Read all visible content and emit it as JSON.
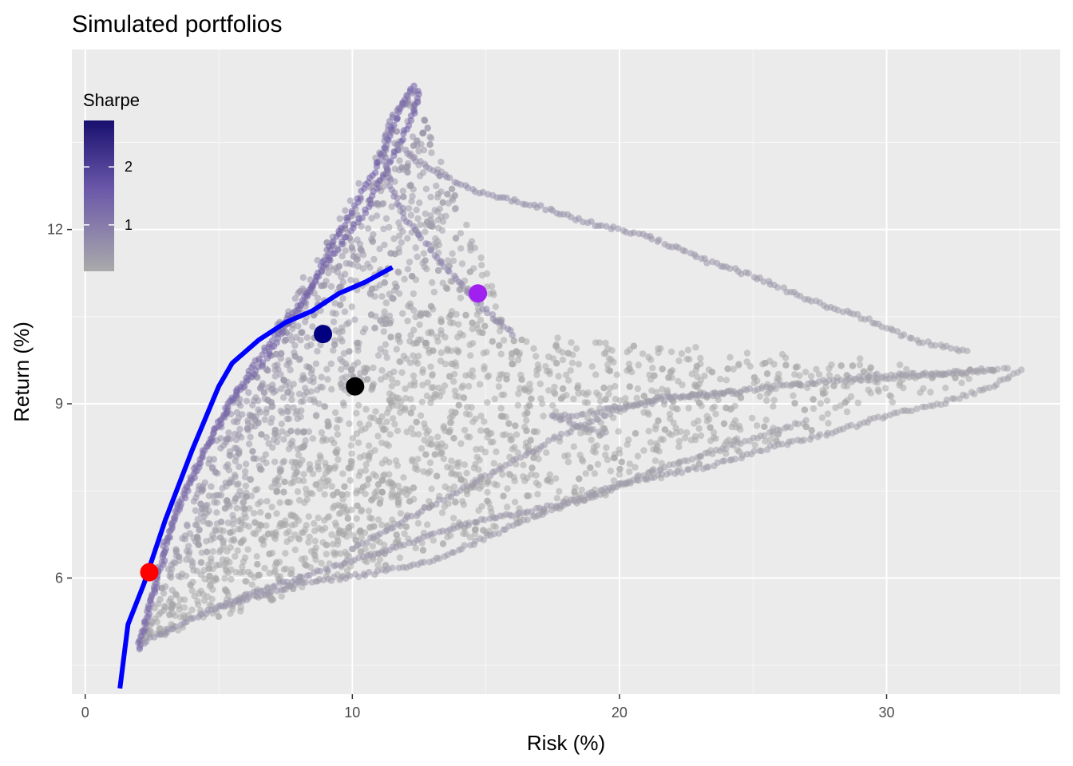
{
  "chart_data": {
    "type": "scatter",
    "title": "Simulated portfolios",
    "xlabel": "Risk (%)",
    "ylabel": "Return (%)",
    "xlim": [
      -0.5,
      36.5
    ],
    "ylim": [
      4.0,
      15.1
    ],
    "x_ticks": [
      0,
      10,
      20,
      30
    ],
    "x_tick_labels": [
      "0",
      "10",
      "20",
      "30"
    ],
    "y_ticks": [
      6,
      9,
      12
    ],
    "y_tick_labels": [
      "6",
      "9",
      "12"
    ],
    "grid": true,
    "background": "#ebebeb",
    "legend": {
      "title": "Sharpe",
      "position": "top-left-inside",
      "type": "colorbar",
      "range": [
        0.2,
        2.8
      ],
      "breaks": [
        1,
        2
      ],
      "break_labels": [
        "1",
        "2"
      ],
      "low_color": "#aaaaaa",
      "high_color": "#18106e"
    },
    "point_style": {
      "opacity": 0.55,
      "color_low": "#aaaaaa",
      "color_high": "#6a56a8"
    },
    "edges": [
      {
        "name": "edge-a",
        "points": [
          [
            2.0,
            4.8
          ],
          [
            2.3,
            5.3
          ],
          [
            3.0,
            6.6
          ],
          [
            4.0,
            7.7
          ],
          [
            5.5,
            9.1
          ],
          [
            6.5,
            9.6
          ],
          [
            7.5,
            10.3
          ],
          [
            8.5,
            11.0
          ],
          [
            9.3,
            11.8
          ],
          [
            10.0,
            12.3
          ],
          [
            10.8,
            13.0
          ],
          [
            11.3,
            13.5
          ],
          [
            11.8,
            14.1
          ],
          [
            12.3,
            14.5
          ]
        ],
        "sharpe_from": 1.4,
        "sharpe_to": 1.9
      },
      {
        "name": "edge-b",
        "points": [
          [
            2.0,
            4.8
          ],
          [
            3.5,
            7.3
          ],
          [
            4.8,
            8.5
          ],
          [
            5.8,
            9.3
          ],
          [
            7.0,
            10.1
          ],
          [
            8.3,
            10.9
          ],
          [
            9.5,
            11.7
          ],
          [
            10.5,
            12.3
          ],
          [
            11.0,
            12.8
          ],
          [
            11.5,
            13.2
          ],
          [
            12.3,
            14.0
          ],
          [
            12.5,
            14.4
          ]
        ],
        "sharpe_from": 1.5,
        "sharpe_to": 1.8
      },
      {
        "name": "edge-c",
        "points": [
          [
            12.3,
            14.4
          ],
          [
            11.6,
            14.0
          ],
          [
            11.3,
            13.7
          ],
          [
            11.2,
            13.3
          ],
          [
            11.4,
            12.8
          ],
          [
            12.0,
            12.2
          ],
          [
            13.0,
            11.6
          ],
          [
            14.0,
            11.1
          ],
          [
            15.0,
            10.6
          ],
          [
            16.0,
            10.2
          ]
        ],
        "sharpe_from": 1.4,
        "sharpe_to": 1.0
      },
      {
        "name": "edge-d",
        "points": [
          [
            11.6,
            13.5
          ],
          [
            13.0,
            13.0
          ],
          [
            15.0,
            12.6
          ],
          [
            17.0,
            12.4
          ],
          [
            19.0,
            12.1
          ],
          [
            21.0,
            11.9
          ],
          [
            23.0,
            11.5
          ],
          [
            25.0,
            11.2
          ],
          [
            27.0,
            10.8
          ],
          [
            29.0,
            10.5
          ],
          [
            31.0,
            10.1
          ],
          [
            33.0,
            9.9
          ]
        ],
        "sharpe_from": 1.0,
        "sharpe_to": 0.6
      },
      {
        "name": "edge-e",
        "points": [
          [
            2.2,
            4.9
          ],
          [
            4.0,
            5.3
          ],
          [
            6.0,
            5.7
          ],
          [
            8.0,
            6.0
          ],
          [
            10.0,
            6.3
          ],
          [
            12.0,
            6.6
          ],
          [
            14.0,
            6.9
          ],
          [
            16.0,
            7.1
          ],
          [
            18.0,
            7.3
          ],
          [
            20.0,
            7.6
          ],
          [
            22.0,
            7.8
          ],
          [
            24.0,
            8.0
          ],
          [
            26.0,
            8.3
          ],
          [
            28.0,
            8.5
          ],
          [
            30.0,
            8.8
          ],
          [
            32.0,
            9.0
          ],
          [
            34.0,
            9.3
          ],
          [
            35.0,
            9.6
          ]
        ],
        "sharpe_from": 0.9,
        "sharpe_to": 0.55
      },
      {
        "name": "edge-f",
        "points": [
          [
            5.0,
            5.5
          ],
          [
            8.0,
            5.9
          ],
          [
            11.0,
            6.1
          ],
          [
            13.0,
            6.3
          ],
          [
            15.0,
            6.7
          ],
          [
            17.0,
            7.1
          ],
          [
            19.0,
            7.4
          ],
          [
            21.0,
            7.8
          ],
          [
            23.0,
            8.1
          ],
          [
            25.0,
            8.4
          ],
          [
            27.0,
            8.7
          ]
        ],
        "sharpe_from": 0.8,
        "sharpe_to": 0.55
      },
      {
        "name": "edge-g",
        "points": [
          [
            10.0,
            6.5
          ],
          [
            12.0,
            7.0
          ],
          [
            14.0,
            7.5
          ],
          [
            16.0,
            8.0
          ],
          [
            18.0,
            8.5
          ],
          [
            20.0,
            8.9
          ],
          [
            22.0,
            9.1
          ],
          [
            24.0,
            9.2
          ],
          [
            26.0,
            9.3
          ],
          [
            28.0,
            9.4
          ],
          [
            30.0,
            9.5
          ],
          [
            32.0,
            9.5
          ],
          [
            34.0,
            9.6
          ]
        ],
        "sharpe_from": 0.8,
        "sharpe_to": 0.6
      },
      {
        "name": "edge-h",
        "points": [
          [
            28.5,
            9.4
          ],
          [
            30.0,
            9.45
          ],
          [
            31.5,
            9.5
          ],
          [
            33.0,
            9.55
          ],
          [
            34.5,
            9.6
          ]
        ],
        "sharpe_from": 0.6,
        "sharpe_to": 0.55
      },
      {
        "name": "edge-i",
        "points": [
          [
            17.5,
            8.8
          ],
          [
            18.5,
            8.8
          ],
          [
            19.5,
            8.9
          ],
          [
            20.5,
            9.0
          ],
          [
            21.5,
            9.1
          ],
          [
            23.0,
            9.15
          ],
          [
            24.5,
            9.2
          ]
        ],
        "sharpe_from": 0.75,
        "sharpe_to": 0.65
      },
      {
        "name": "edge-j",
        "points": [
          [
            17.5,
            8.8
          ],
          [
            18.5,
            8.6
          ],
          [
            19.5,
            8.5
          ]
        ],
        "sharpe_from": 0.75,
        "sharpe_to": 0.7
      }
    ],
    "frontier_line": {
      "color": "#0000ff",
      "points": [
        [
          1.3,
          4.1
        ],
        [
          1.6,
          5.2
        ],
        [
          2.2,
          5.9
        ],
        [
          3.0,
          7.0
        ],
        [
          4.0,
          8.2
        ],
        [
          5.0,
          9.3
        ],
        [
          5.5,
          9.7
        ],
        [
          6.5,
          10.1
        ],
        [
          7.5,
          10.4
        ],
        [
          8.5,
          10.6
        ],
        [
          9.5,
          10.9
        ],
        [
          10.5,
          11.1
        ],
        [
          11.5,
          11.35
        ]
      ]
    },
    "highlights": [
      {
        "name": "min-variance-point",
        "x": 2.4,
        "y": 6.1,
        "color": "#ff0000"
      },
      {
        "name": "max-sharpe-point",
        "x": 8.9,
        "y": 10.2,
        "color": "#000080"
      },
      {
        "name": "average-point",
        "x": 10.1,
        "y": 9.3,
        "color": "#000000"
      },
      {
        "name": "max-return-point",
        "x": 14.7,
        "y": 10.9,
        "color": "#a020f0"
      }
    ],
    "random_points": {
      "count": 2600,
      "seed": 7,
      "region": [
        [
          2.0,
          4.8
        ],
        [
          5.5,
          9.1
        ],
        [
          12.3,
          14.4
        ],
        [
          16.0,
          10.2
        ],
        [
          34.5,
          9.6
        ],
        [
          2.2,
          4.9
        ]
      ]
    }
  }
}
